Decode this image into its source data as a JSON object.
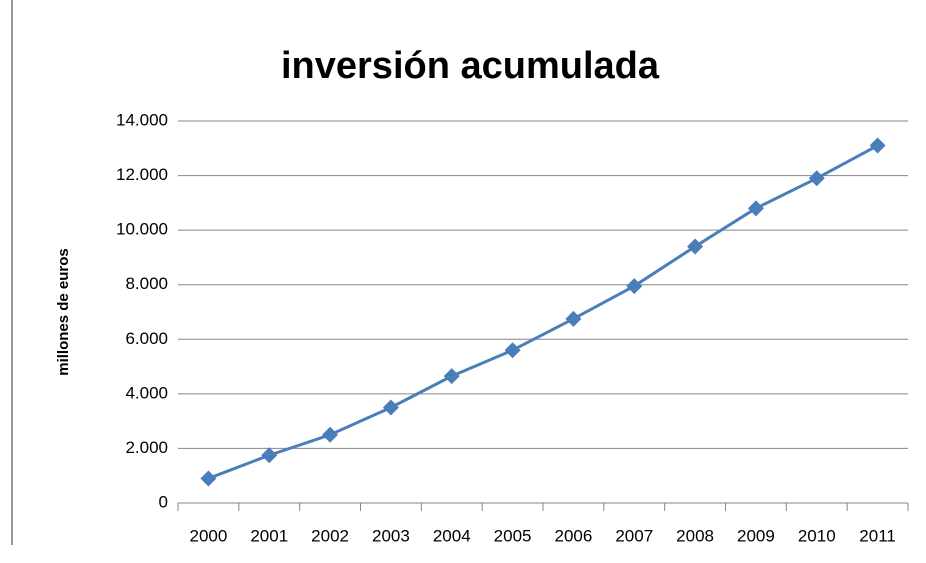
{
  "chart_data": {
    "type": "line",
    "title": "inversión acumulada",
    "y_label": "millones de euros",
    "categories": [
      "2000",
      "2001",
      "2002",
      "2003",
      "2004",
      "2005",
      "2006",
      "2007",
      "2008",
      "2009",
      "2010",
      "2011"
    ],
    "series": [
      {
        "name": "inversión acumulada",
        "color": "#4a7ebb",
        "values": [
          900,
          1750,
          2500,
          3500,
          4650,
          5600,
          6750,
          7950,
          9400,
          10800,
          11900,
          13100
        ]
      }
    ],
    "ylim": [
      0,
      14000
    ],
    "yticks": [
      0,
      {
        "value": 2000,
        "label": "2.000"
      },
      {
        "value": 4000,
        "label": "4.000"
      },
      {
        "value": 6000,
        "label": "6.000"
      },
      {
        "value": 8000,
        "label": "8.000"
      },
      {
        "value": 10000,
        "label": "10.000"
      },
      {
        "value": 12000,
        "label": "12.000"
      },
      {
        "value": 14000,
        "label": "14.000"
      }
    ],
    "grid": true,
    "legend": false
  }
}
